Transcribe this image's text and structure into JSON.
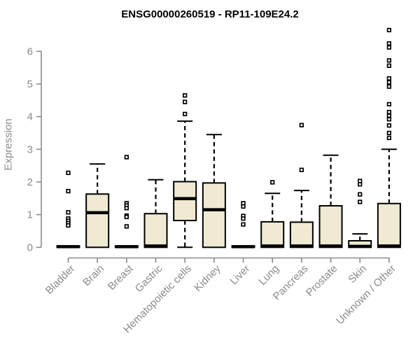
{
  "chart_data": {
    "type": "boxplot",
    "title": "ENSG00000260519 - RP11-109E24.2",
    "ylabel": "Expression",
    "xlabel": "",
    "ylim": [
      0,
      6.8
    ],
    "yticks": [
      0,
      1,
      2,
      3,
      4,
      5,
      6
    ],
    "grid": false,
    "legend": "none",
    "categories": [
      "Bladder",
      "Brain",
      "Breast",
      "Gastric",
      "Hematopoietic cells",
      "Kidney",
      "Liver",
      "Lung",
      "Pancreas",
      "Prostate",
      "Skin",
      "Unknown / Other"
    ],
    "series": [
      {
        "name": "Bladder",
        "q1": 0,
        "median": 0.02,
        "q3": 0.04,
        "whisker_low": 0,
        "whisker_high": 0.04,
        "outliers": [
          2.28,
          1.72,
          1.07,
          0.88,
          0.81,
          0.74,
          0.67
        ]
      },
      {
        "name": "Brain",
        "q1": 0,
        "median": 1.06,
        "q3": 1.63,
        "whisker_low": 0,
        "whisker_high": 2.55,
        "outliers": []
      },
      {
        "name": "Breast",
        "q1": 0,
        "median": 0.02,
        "q3": 0.04,
        "whisker_low": 0,
        "whisker_high": 0.04,
        "outliers": [
          2.76,
          1.35,
          1.28,
          1.2,
          0.97,
          0.93,
          0.64
        ]
      },
      {
        "name": "Gastric",
        "q1": 0,
        "median": 0.04,
        "q3": 1.03,
        "whisker_low": 0,
        "whisker_high": 2.07,
        "outliers": []
      },
      {
        "name": "Hematopoietic cells",
        "q1": 0.82,
        "median": 1.49,
        "q3": 2.01,
        "whisker_low": 0,
        "whisker_high": 3.86,
        "outliers": [
          4.65,
          4.45,
          4.08
        ]
      },
      {
        "name": "Kidney",
        "q1": 0,
        "median": 1.15,
        "q3": 1.97,
        "whisker_low": 0,
        "whisker_high": 3.45,
        "outliers": []
      },
      {
        "name": "Liver",
        "q1": 0,
        "median": 0.02,
        "q3": 0.04,
        "whisker_low": 0,
        "whisker_high": 0.04,
        "outliers": [
          1.35,
          1.25,
          0.96,
          0.88,
          0.7
        ]
      },
      {
        "name": "Lung",
        "q1": 0,
        "median": 0.04,
        "q3": 0.78,
        "whisker_low": 0,
        "whisker_high": 1.65,
        "outliers": [
          1.99
        ]
      },
      {
        "name": "Pancreas",
        "q1": 0,
        "median": 0.04,
        "q3": 0.77,
        "whisker_low": 0,
        "whisker_high": 1.74,
        "outliers": [
          3.74,
          2.37
        ]
      },
      {
        "name": "Prostate",
        "q1": 0,
        "median": 0.04,
        "q3": 1.27,
        "whisker_low": 0,
        "whisker_high": 2.82,
        "outliers": []
      },
      {
        "name": "Skin",
        "q1": 0,
        "median": 0.03,
        "q3": 0.2,
        "whisker_low": 0,
        "whisker_high": 0.41,
        "outliers": [
          2.03,
          1.93,
          1.62,
          1.39
        ]
      },
      {
        "name": "Unknown / Other",
        "q1": 0,
        "median": 0.04,
        "q3": 1.34,
        "whisker_low": 0,
        "whisker_high": 3.0,
        "outliers": [
          6.65,
          6.24,
          6.12,
          5.72,
          5.56,
          5.17,
          5.05,
          4.92,
          4.38,
          4.14,
          4.03,
          3.92,
          3.73,
          3.5,
          3.35
        ]
      }
    ],
    "colors": {
      "box_fill": "#f0ead2",
      "box_stroke": "#000000",
      "median": "#000000",
      "outlier_stroke": "#000000",
      "outlier_fill": "#ffffff",
      "axis": "#8a8a8a",
      "tick_label": "#8a8a8a",
      "title": "#000000",
      "background": "#ffffff"
    }
  }
}
